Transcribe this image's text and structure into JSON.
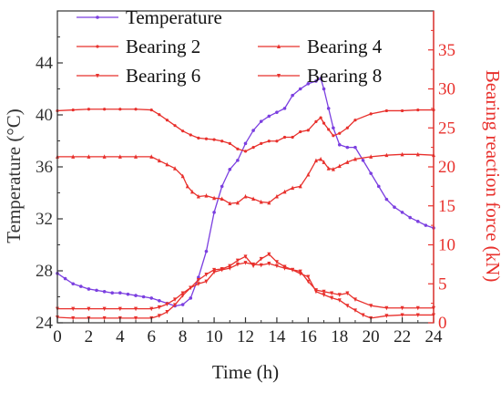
{
  "chart_data": {
    "type": "line",
    "xlabel": "Time (h)",
    "ylabel_left": "Temperature (°C)",
    "ylabel_right": "Bearing reaction force (kN)",
    "xlim": [
      0,
      24
    ],
    "ylim_left": [
      24,
      48
    ],
    "ylim_right": [
      0,
      40
    ],
    "xticks": [
      0,
      2,
      4,
      6,
      8,
      10,
      12,
      14,
      16,
      18,
      20,
      22,
      24
    ],
    "yticks_left": [
      24,
      28,
      32,
      36,
      40,
      44
    ],
    "yticks_right": [
      0,
      5,
      10,
      15,
      20,
      25,
      30,
      35
    ],
    "legend_placement": "top",
    "grid": false,
    "colors": {
      "left_axis": "#333333",
      "right_axis": "#e8302c"
    },
    "series": [
      {
        "name": "Temperature",
        "axis": "left",
        "color": "#7b3fe0",
        "x": [
          0,
          0.5,
          1,
          1.5,
          2,
          2.5,
          3,
          3.5,
          4,
          4.5,
          5,
          5.5,
          6,
          6.5,
          7,
          7.5,
          8,
          8.5,
          9,
          9.5,
          10,
          10.5,
          11,
          11.5,
          12,
          12.5,
          13,
          13.5,
          14,
          14.5,
          15,
          15.5,
          16,
          16.5,
          16.8,
          17,
          17.3,
          17.6,
          18,
          18.5,
          19,
          19.5,
          20,
          20.5,
          21,
          21.5,
          22,
          22.5,
          23,
          23.5,
          24
        ],
        "y": [
          27.8,
          27.4,
          27.0,
          26.8,
          26.6,
          26.5,
          26.4,
          26.3,
          26.3,
          26.2,
          26.1,
          26.0,
          25.9,
          25.7,
          25.5,
          25.3,
          25.4,
          25.9,
          27.5,
          29.5,
          32.5,
          34.5,
          35.8,
          36.5,
          37.8,
          38.8,
          39.5,
          39.9,
          40.2,
          40.5,
          41.5,
          42.0,
          42.4,
          42.6,
          42.8,
          42.0,
          40.5,
          39.0,
          37.7,
          37.5,
          37.5,
          36.5,
          35.5,
          34.5,
          33.5,
          32.9,
          32.5,
          32.1,
          31.8,
          31.5,
          31.3
        ]
      },
      {
        "name": "Bearing 2",
        "axis": "right",
        "color": "#e8302c",
        "x": [
          0,
          1,
          2,
          3,
          4,
          5,
          6,
          6.5,
          7,
          7.5,
          8,
          8.5,
          9,
          9.5,
          10,
          10.5,
          11,
          11.5,
          12,
          12.5,
          13,
          13.5,
          14,
          14.5,
          15,
          15.5,
          16,
          16.5,
          16.8,
          17,
          17.3,
          17.6,
          18,
          18.5,
          19,
          20,
          21,
          22,
          23,
          24
        ],
        "y": [
          27.2,
          27.3,
          27.4,
          27.4,
          27.4,
          27.4,
          27.3,
          26.7,
          26.0,
          25.3,
          24.6,
          24.1,
          23.7,
          23.6,
          23.5,
          23.3,
          23.0,
          22.3,
          22.0,
          22.5,
          23.0,
          23.3,
          23.3,
          23.8,
          23.8,
          24.5,
          24.7,
          25.8,
          26.3,
          25.6,
          24.8,
          24.0,
          24.3,
          25.0,
          26.0,
          26.8,
          27.2,
          27.2,
          27.3,
          27.3
        ]
      },
      {
        "name": "Bearing 4",
        "axis": "right",
        "color": "#e8302c",
        "x": [
          0,
          1,
          2,
          3,
          4,
          5,
          6,
          6.5,
          7,
          7.5,
          8,
          8.3,
          8.6,
          9,
          9.5,
          10,
          10.5,
          11,
          11.5,
          12,
          12.5,
          13,
          13.5,
          14,
          14.5,
          15,
          15.5,
          16,
          16.5,
          16.8,
          17,
          17.3,
          17.6,
          18,
          18.5,
          19,
          20,
          21,
          22,
          23,
          24
        ],
        "y": [
          21.3,
          21.3,
          21.3,
          21.3,
          21.3,
          21.3,
          21.3,
          20.8,
          20.3,
          19.8,
          18.8,
          17.5,
          16.8,
          16.2,
          16.3,
          16.0,
          15.9,
          15.3,
          15.4,
          16.2,
          15.9,
          15.5,
          15.4,
          16.2,
          16.8,
          17.3,
          17.5,
          19.0,
          20.8,
          21.0,
          20.6,
          19.8,
          19.7,
          20.1,
          20.6,
          21.0,
          21.3,
          21.5,
          21.6,
          21.6,
          21.5
        ]
      },
      {
        "name": "Bearing 6",
        "axis": "right",
        "color": "#e8302c",
        "x": [
          0,
          1,
          2,
          3,
          4,
          5,
          6,
          6.5,
          7,
          7.5,
          8,
          8.5,
          9,
          9.5,
          10,
          10.5,
          11,
          11.5,
          12,
          12.5,
          13,
          13.5,
          14,
          14.5,
          15,
          15.5,
          16,
          16.5,
          17,
          17.5,
          18,
          18.5,
          19,
          20,
          21,
          22,
          23,
          24
        ],
        "y": [
          1.8,
          1.8,
          1.8,
          1.8,
          1.8,
          1.8,
          1.8,
          2.0,
          2.4,
          3.0,
          3.8,
          4.5,
          5.0,
          5.3,
          6.5,
          6.8,
          7.0,
          7.5,
          7.7,
          7.5,
          7.4,
          7.6,
          7.3,
          7.0,
          6.8,
          6.6,
          5.3,
          4.2,
          4.0,
          3.8,
          3.6,
          3.8,
          3.0,
          2.2,
          1.9,
          1.9,
          1.9,
          1.9
        ]
      },
      {
        "name": "Bearing 8",
        "axis": "right",
        "color": "#e8302c",
        "x": [
          0,
          1,
          2,
          3,
          4,
          5,
          6,
          6.5,
          7,
          7.5,
          8,
          8.5,
          9,
          9.5,
          10,
          10.5,
          11,
          11.5,
          12,
          12.5,
          13,
          13.5,
          14,
          14.5,
          15,
          15.5,
          16,
          16.5,
          17,
          17.5,
          18,
          18.5,
          19,
          19.5,
          20,
          21,
          22,
          23,
          24
        ],
        "y": [
          0.7,
          0.6,
          0.6,
          0.6,
          0.6,
          0.6,
          0.6,
          0.9,
          1.4,
          2.3,
          3.5,
          4.5,
          5.5,
          6.2,
          6.8,
          6.9,
          7.3,
          8.0,
          8.5,
          7.3,
          8.2,
          8.8,
          7.8,
          7.2,
          6.8,
          6.3,
          5.9,
          4.0,
          3.6,
          3.2,
          2.9,
          2.2,
          1.6,
          1.0,
          0.6,
          0.9,
          1.0,
          1.0,
          1.0
        ]
      }
    ]
  }
}
